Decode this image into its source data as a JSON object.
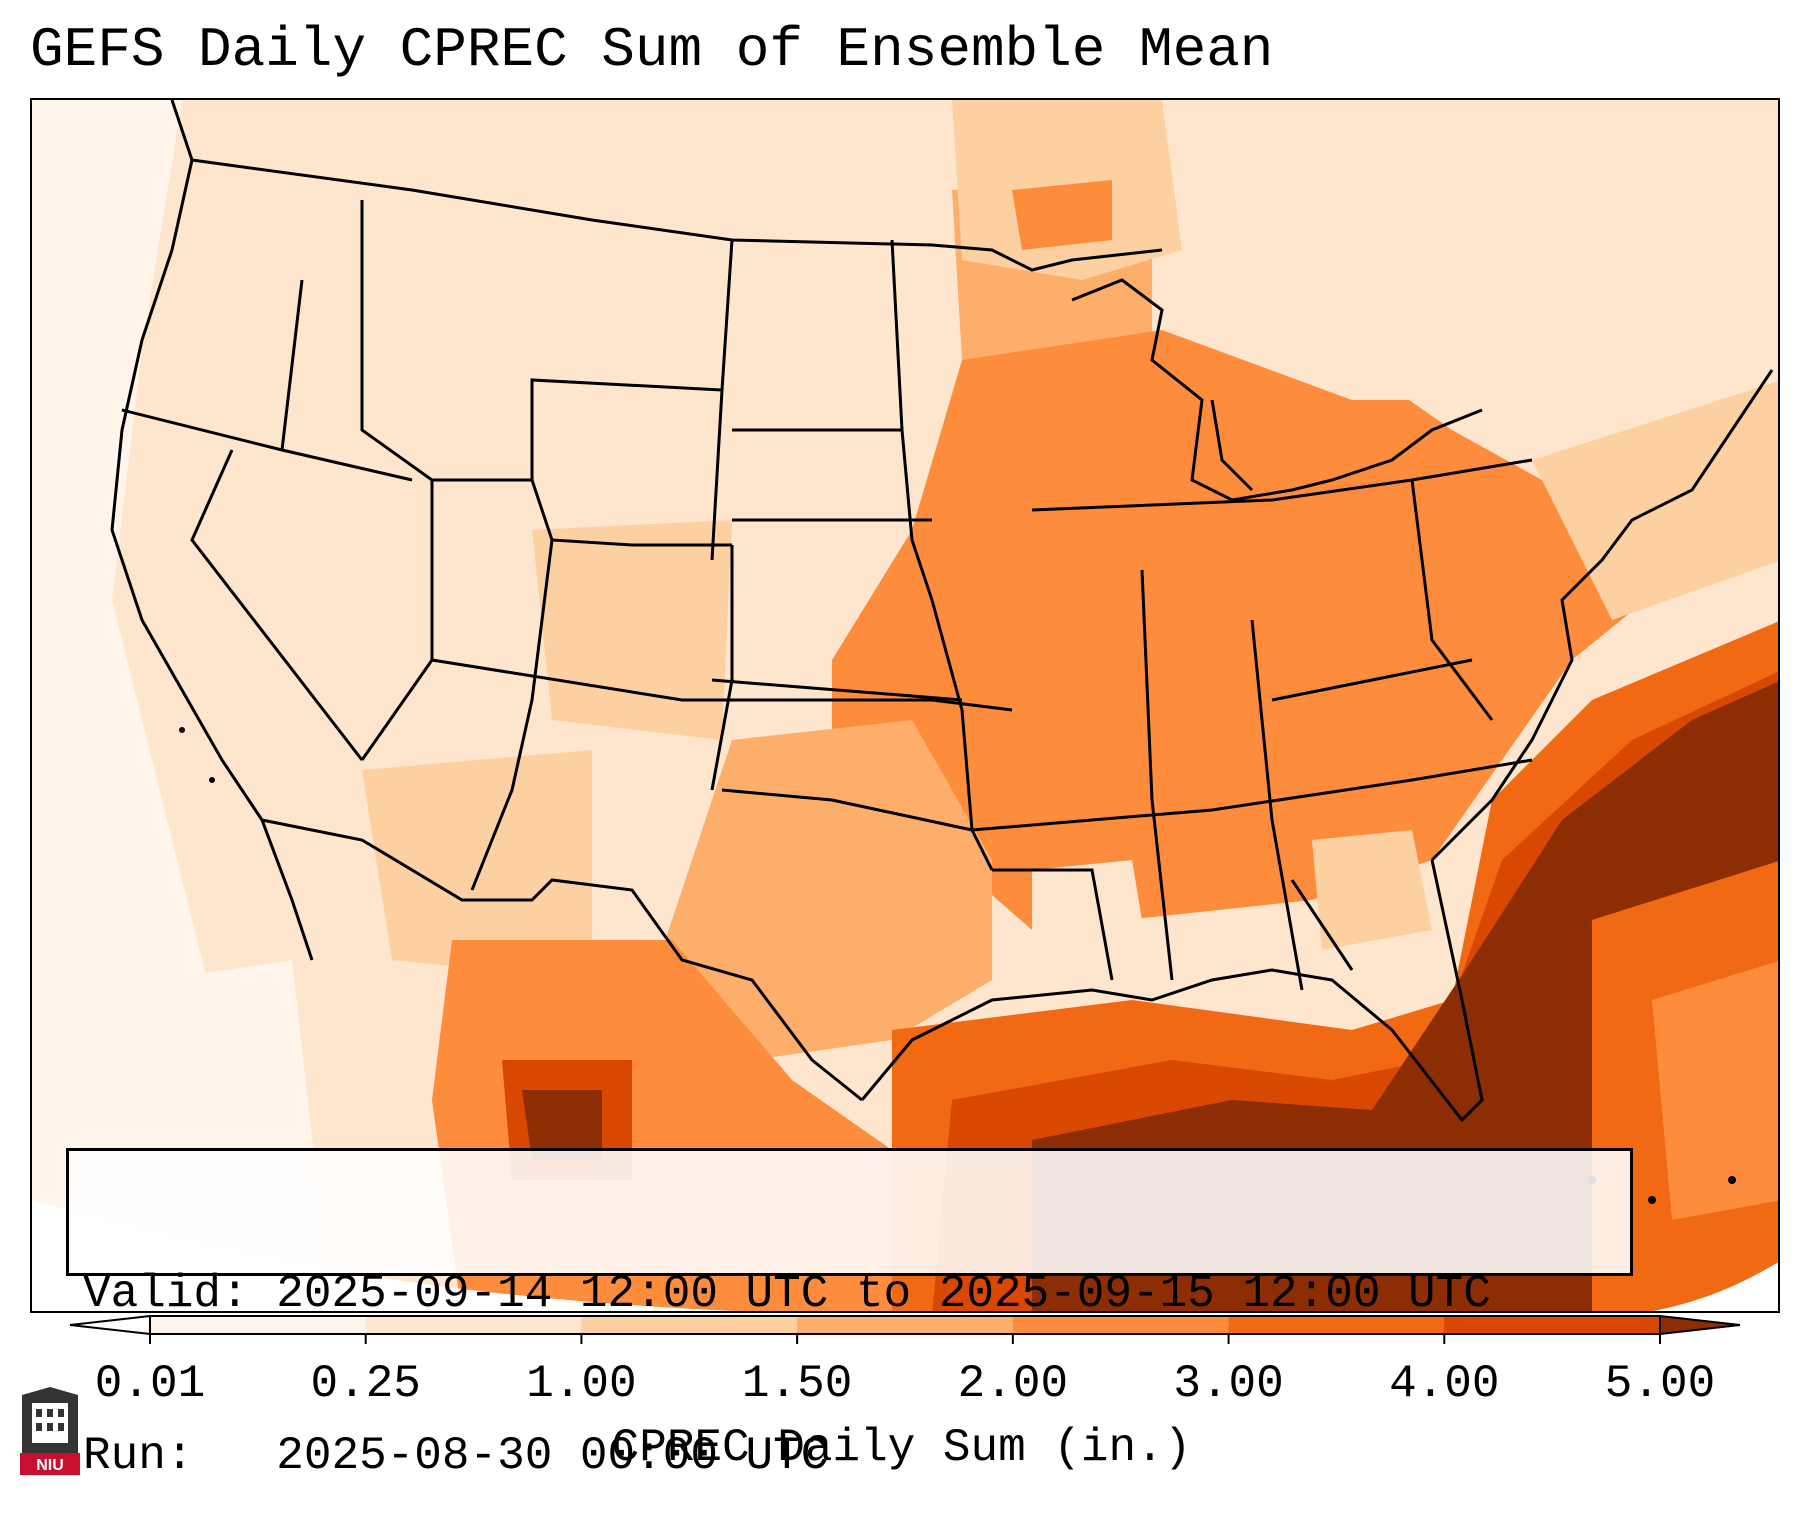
{
  "title": "GEFS Daily CPREC Sum of Ensemble Mean",
  "info": {
    "valid_label": "Valid:",
    "valid_value": "2025-09-14 12:00 UTC to 2025-09-15 12:00 UTC",
    "run_label": "Run:",
    "run_value": "2025-08-30 00:00 UTC"
  },
  "colorbar": {
    "label": "CPREC Daily Sum (in.)",
    "ticks": [
      "0.01",
      "0.25",
      "1.00",
      "1.50",
      "2.00",
      "3.00",
      "4.00",
      "5.00"
    ],
    "bins": [
      {
        "range": "0.01-0.25",
        "color": "#fff5eb"
      },
      {
        "range": "0.25-1.00",
        "color": "#fee6ce"
      },
      {
        "range": "1.00-1.50",
        "color": "#fdd0a2"
      },
      {
        "range": "1.50-2.00",
        "color": "#fdae6b"
      },
      {
        "range": "2.00-3.00",
        "color": "#fd8d3c"
      },
      {
        "range": "3.00-4.00",
        "color": "#f16913"
      },
      {
        "range": "4.00-5.00",
        "color": "#d94801"
      }
    ],
    "under_color": "#ffffff",
    "over_color": "#8c2d04"
  },
  "logo": {
    "text": "NIU",
    "color": "#c8102e"
  },
  "map": {
    "region": "Continental United States",
    "land_color": "#fee6ce",
    "outline_color": "#000000"
  }
}
